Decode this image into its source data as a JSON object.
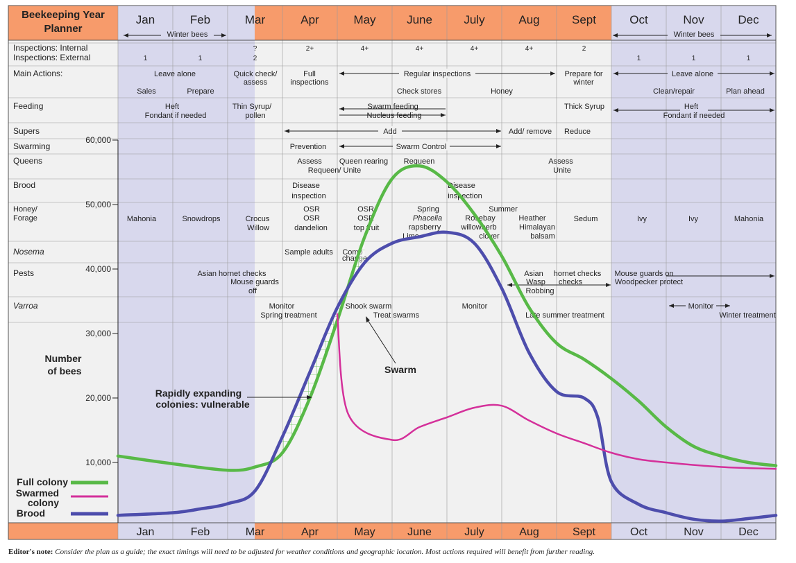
{
  "title": "Beekeeping Year Planner",
  "months": [
    "Jan",
    "Feb",
    "Mar",
    "Apr",
    "May",
    "June",
    "July",
    "Aug",
    "Sept",
    "Oct",
    "Nov",
    "Dec"
  ],
  "months_bottom": [
    "Jan",
    "Feb",
    "Mar",
    "Apr",
    "May",
    "June",
    "July",
    "Aug",
    "Sept",
    "Oct",
    "Nov",
    "Dec"
  ],
  "winter_bees_left": "Winter bees",
  "winter_bees_right": "Winter bees",
  "row_labels": {
    "inspections_internal": "Inspections: Internal",
    "inspections_external": "Inspections: External",
    "main_actions": "Main Actions:",
    "feeding": "Feeding",
    "supers": "Supers",
    "swarming": "Swarming",
    "queens": "Queens",
    "brood": "Brood",
    "honey_forage_1": "Honey/",
    "honey_forage_2": "Forage",
    "nosema": "Nosema",
    "pests": "Pests",
    "varroa": "Varroa"
  },
  "inspections": {
    "internal": [
      "",
      "",
      "?",
      "2+",
      "4+",
      "4+",
      "4+",
      "4+",
      "2",
      "",
      "",
      ""
    ],
    "external": [
      "1",
      "1",
      "2",
      "",
      "",
      "",
      "",
      "",
      "",
      "1",
      "1",
      "1"
    ]
  },
  "cells": {
    "leave_alone_1": "Leave alone",
    "sales": "Sales",
    "prepare": "Prepare",
    "quick_check_1": "Quick check/",
    "quick_check_2": "assess",
    "full_insp_1": "Full",
    "full_insp_2": "inspections",
    "regular_insp": "Regular inspections",
    "check_stores": "Check stores",
    "honey": "Honey",
    "prepare_winter_1": "Prepare for",
    "prepare_winter_2": "winter",
    "leave_alone_2": "Leave alone",
    "clean_repair": "Clean/repair",
    "plan_ahead": "Plan ahead",
    "heft_1": "Heft",
    "fondant_1": "Fondant if needed",
    "thin_syrup_1": "Thin Syrup/",
    "thin_syrup_2": "pollen",
    "swarm_feeding": "Swarm feeding",
    "nucleus_feeding": "Nucleus feeding",
    "thick_syrup": "Thick Syrup",
    "heft_2": "Heft",
    "fondant_2": "Fondant if needed",
    "add": "Add",
    "add_remove": "Add/ remove",
    "reduce": "Reduce",
    "prevention": "Prevention",
    "swarm_control": "Swarm Control",
    "assess_1": "Assess",
    "requeen_unite_1": "Requeen/ Unite",
    "queen_rearing": "Queen rearing",
    "requeen": "Requeen",
    "assess_2": "Assess",
    "unite": "Unite",
    "disease_1a": "Disease",
    "disease_1b": "inspection",
    "disease_2a": "Disease",
    "disease_2b": "inspection",
    "mahonia_1": "Mahonia",
    "snowdrops": "Snowdrops",
    "crocus": "Crocus",
    "willow": "Willow",
    "osr_1": "OSR",
    "osr_2": "OSR",
    "dandelion": "dandelion",
    "osr_3": "OSR",
    "osr_4": "OSR",
    "top_fruit": "top fruit",
    "spring": "Spring",
    "phacelia": "Phacelia",
    "rasp": "rapsberry",
    "lime": "Lime",
    "summer": "Summer",
    "rosebay": "Rosebay",
    "willowherb": "willowherb",
    "clover": "clover",
    "heather": "Heather",
    "himalayan": "Himalayan",
    "balsam": "balsam",
    "sedum": "Sedum",
    "ivy_1": "Ivy",
    "ivy_2": "Ivy",
    "mahonia_2": "Mahonia",
    "sample_adults": "Sample adults",
    "comb_1": "Comb",
    "comb_2": "change",
    "asian_hornet_1": "Asian hornet checks",
    "mouse_guards_1": "Mouse guards",
    "off": "off",
    "asian_2": "Asian",
    "hornet_checks_2": "hornet checks",
    "wasp": "Wasp",
    "checks": "checks",
    "robbing": "Robbing",
    "mouse_guards_on": "Mouse guards on",
    "woodpecker": "Woodpecker protect",
    "monitor_1": "Monitor",
    "spring_treat": "Spring treatment",
    "shook_swarm": "Shook swarm",
    "treat_swarms": "Treat swarms",
    "monitor_2": "Monitor",
    "late_summer": "Late summer treatment",
    "monitor_3": "Monitor",
    "winter_treat": "Winter treatment"
  },
  "annotations": {
    "number_of_bees_1": "Number",
    "number_of_bees_2": "of bees",
    "vulnerable_1": "Rapidly expanding",
    "vulnerable_2": "colonies: vulnerable",
    "swarm": "Swarm"
  },
  "colors": {
    "orange": "#f79b6b",
    "winter": "#d8d8ed",
    "summer": "#f1f1f1",
    "full_colony": "#58b947",
    "swarmed_colony": "#d4309a",
    "brood": "#4d4dac"
  },
  "legend": {
    "full": "Full colony",
    "swarmed_1": "Swarmed",
    "swarmed_2": "colony",
    "brood": "Brood"
  },
  "editor_note": {
    "label": "Editor's note:",
    "text": "Consider the plan as a guide; the exact timings will need to be adjusted for weather conditions and geographic location. Most actions required will benefit from further reading."
  },
  "chart_data": {
    "type": "line",
    "title": "Number of bees",
    "ylabel": "Number of bees",
    "ylim": [
      0,
      60000
    ],
    "yticks": [
      10000,
      20000,
      30000,
      40000,
      50000,
      60000
    ],
    "ytick_labels": [
      "10,000",
      "20,000",
      "30,000",
      "40,000",
      "50,000",
      "60,000"
    ],
    "x_unit": "month (1.0 = start of Jan, 13.0 = end of Dec)",
    "series": [
      {
        "name": "Full colony",
        "color": "#58b947",
        "points": [
          [
            1.0,
            11000
          ],
          [
            2.0,
            9800
          ],
          [
            3.0,
            8800
          ],
          [
            3.5,
            9300
          ],
          [
            4.0,
            11500
          ],
          [
            4.5,
            20000
          ],
          [
            5.0,
            32000
          ],
          [
            5.5,
            45000
          ],
          [
            6.0,
            54000
          ],
          [
            6.5,
            56000
          ],
          [
            7.0,
            53500
          ],
          [
            7.5,
            48500
          ],
          [
            8.0,
            42000
          ],
          [
            8.5,
            34000
          ],
          [
            9.0,
            28500
          ],
          [
            9.5,
            26000
          ],
          [
            10.0,
            23000
          ],
          [
            10.5,
            19500
          ],
          [
            11.0,
            15500
          ],
          [
            11.5,
            12500
          ],
          [
            12.0,
            11000
          ],
          [
            12.5,
            10000
          ],
          [
            13.0,
            9500
          ]
        ]
      },
      {
        "name": "Swarmed colony",
        "color": "#d4309a",
        "points": [
          [
            5.0,
            33000
          ],
          [
            5.2,
            17500
          ],
          [
            6.0,
            13500
          ],
          [
            6.5,
            15500
          ],
          [
            7.0,
            17000
          ],
          [
            7.5,
            18500
          ],
          [
            8.0,
            18800
          ],
          [
            8.5,
            16500
          ],
          [
            9.0,
            14500
          ],
          [
            9.5,
            13000
          ],
          [
            10.0,
            11500
          ],
          [
            10.5,
            10500
          ],
          [
            11.0,
            10000
          ],
          [
            12.0,
            9300
          ],
          [
            13.0,
            9000
          ]
        ]
      },
      {
        "name": "Brood",
        "color": "#4d4dac",
        "points": [
          [
            1.0,
            1800
          ],
          [
            2.0,
            2200
          ],
          [
            2.5,
            2800
          ],
          [
            3.0,
            3600
          ],
          [
            3.5,
            5600
          ],
          [
            4.0,
            14000
          ],
          [
            4.5,
            24000
          ],
          [
            5.0,
            34000
          ],
          [
            5.5,
            41000
          ],
          [
            6.0,
            44000
          ],
          [
            6.5,
            45000
          ],
          [
            7.0,
            45700
          ],
          [
            7.5,
            44000
          ],
          [
            8.0,
            37000
          ],
          [
            8.5,
            27000
          ],
          [
            9.0,
            21000
          ],
          [
            9.5,
            20000
          ],
          [
            9.75,
            17000
          ],
          [
            10.0,
            7000
          ],
          [
            10.5,
            3500
          ],
          [
            11.0,
            2200
          ],
          [
            11.5,
            1200
          ],
          [
            12.0,
            900
          ],
          [
            12.5,
            1300
          ],
          [
            13.0,
            1800
          ]
        ]
      }
    ]
  }
}
